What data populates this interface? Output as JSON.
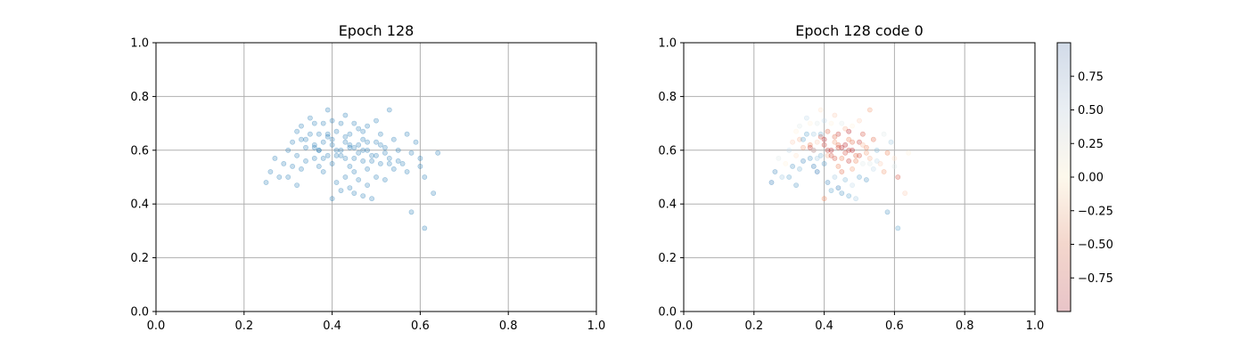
{
  "chart_data": [
    {
      "type": "scatter",
      "title": "Epoch 128",
      "xlim": [
        0,
        1
      ],
      "ylim": [
        0,
        1
      ],
      "xticks": [
        "0.0",
        "0.2",
        "0.4",
        "0.6",
        "0.8",
        "1.0"
      ],
      "yticks": [
        "0.0",
        "0.2",
        "0.4",
        "0.6",
        "0.8",
        "1.0"
      ],
      "grid": true,
      "marker_color": "#1f77b4",
      "alpha": 0.25,
      "series": [
        {
          "x": [
            0.25,
            0.26,
            0.27,
            0.28,
            0.29,
            0.3,
            0.3,
            0.31,
            0.31,
            0.32,
            0.32,
            0.33,
            0.33,
            0.33,
            0.34,
            0.34,
            0.35,
            0.35,
            0.36,
            0.36,
            0.36,
            0.37,
            0.37,
            0.37,
            0.38,
            0.38,
            0.38,
            0.39,
            0.39,
            0.39,
            0.4,
            0.4,
            0.4,
            0.4,
            0.41,
            0.41,
            0.41,
            0.42,
            0.42,
            0.42,
            0.43,
            0.43,
            0.43,
            0.43,
            0.44,
            0.44,
            0.44,
            0.45,
            0.45,
            0.45,
            0.45,
            0.46,
            0.46,
            0.46,
            0.47,
            0.47,
            0.47,
            0.48,
            0.48,
            0.48,
            0.48,
            0.49,
            0.49,
            0.5,
            0.5,
            0.5,
            0.51,
            0.51,
            0.52,
            0.52,
            0.53,
            0.53,
            0.54,
            0.54,
            0.55,
            0.56,
            0.57,
            0.58,
            0.59,
            0.6,
            0.61,
            0.63,
            0.64,
            0.58,
            0.61,
            0.36,
            0.4,
            0.42,
            0.44,
            0.47,
            0.49,
            0.52,
            0.38,
            0.43,
            0.46,
            0.5,
            0.55,
            0.41,
            0.45,
            0.48,
            0.53,
            0.39,
            0.44,
            0.47,
            0.51,
            0.34,
            0.37,
            0.57,
            0.6,
            0.32
          ],
          "y": [
            0.48,
            0.52,
            0.57,
            0.5,
            0.55,
            0.6,
            0.5,
            0.63,
            0.54,
            0.58,
            0.67,
            0.53,
            0.64,
            0.69,
            0.56,
            0.61,
            0.72,
            0.66,
            0.57,
            0.62,
            0.7,
            0.54,
            0.6,
            0.66,
            0.52,
            0.63,
            0.7,
            0.58,
            0.65,
            0.75,
            0.42,
            0.55,
            0.62,
            0.71,
            0.48,
            0.58,
            0.67,
            0.45,
            0.6,
            0.7,
            0.5,
            0.57,
            0.63,
            0.73,
            0.46,
            0.54,
            0.66,
            0.44,
            0.52,
            0.61,
            0.7,
            0.49,
            0.59,
            0.68,
            0.43,
            0.56,
            0.64,
            0.47,
            0.53,
            0.6,
            0.69,
            0.42,
            0.58,
            0.5,
            0.63,
            0.71,
            0.55,
            0.66,
            0.49,
            0.61,
            0.57,
            0.75,
            0.53,
            0.64,
            0.6,
            0.55,
            0.66,
            0.59,
            0.63,
            0.57,
            0.5,
            0.44,
            0.59,
            0.37,
            0.31,
            0.61,
            0.64,
            0.58,
            0.62,
            0.6,
            0.56,
            0.59,
            0.57,
            0.65,
            0.62,
            0.58,
            0.56,
            0.6,
            0.57,
            0.63,
            0.55,
            0.66,
            0.61,
            0.67,
            0.62,
            0.64,
            0.6,
            0.52,
            0.54,
            0.47
          ]
        }
      ]
    },
    {
      "type": "scatter",
      "title": "Epoch 128 code 0",
      "xlim": [
        0,
        1
      ],
      "ylim": [
        0,
        1
      ],
      "xticks": [
        "0.0",
        "0.2",
        "0.4",
        "0.6",
        "0.8",
        "1.0"
      ],
      "yticks": [
        "0.0",
        "0.2",
        "0.4",
        "0.6",
        "0.8",
        "1.0"
      ],
      "grid": true,
      "alpha": 0.3,
      "colorbar": {
        "colormap": "RdBu",
        "range": [
          -1,
          1
        ],
        "ticks": [
          "0.75",
          "0.50",
          "0.25",
          "0.00",
          "−0.25",
          "−0.50",
          "−0.75"
        ],
        "tick_values": [
          0.75,
          0.5,
          0.25,
          0.0,
          -0.25,
          -0.5,
          -0.75
        ],
        "colors": [
          "#b2182b",
          "#ef8a62",
          "#fddbc7",
          "#fff7e6",
          "#d1e5f0",
          "#67a9cf",
          "#2166ac"
        ]
      },
      "series": [
        {
          "x": [
            0.25,
            0.26,
            0.27,
            0.28,
            0.29,
            0.3,
            0.3,
            0.31,
            0.31,
            0.32,
            0.32,
            0.33,
            0.33,
            0.33,
            0.34,
            0.34,
            0.35,
            0.35,
            0.36,
            0.36,
            0.36,
            0.37,
            0.37,
            0.37,
            0.38,
            0.38,
            0.38,
            0.39,
            0.39,
            0.39,
            0.4,
            0.4,
            0.4,
            0.4,
            0.41,
            0.41,
            0.41,
            0.42,
            0.42,
            0.42,
            0.43,
            0.43,
            0.43,
            0.43,
            0.44,
            0.44,
            0.44,
            0.45,
            0.45,
            0.45,
            0.45,
            0.46,
            0.46,
            0.46,
            0.47,
            0.47,
            0.47,
            0.48,
            0.48,
            0.48,
            0.48,
            0.49,
            0.49,
            0.5,
            0.5,
            0.5,
            0.51,
            0.51,
            0.52,
            0.52,
            0.53,
            0.53,
            0.54,
            0.54,
            0.55,
            0.56,
            0.57,
            0.58,
            0.59,
            0.6,
            0.61,
            0.63,
            0.64,
            0.58,
            0.61,
            0.36,
            0.4,
            0.42,
            0.44,
            0.47,
            0.49,
            0.52,
            0.38,
            0.43,
            0.46,
            0.5,
            0.55,
            0.41,
            0.45,
            0.48,
            0.53,
            0.39,
            0.44,
            0.47,
            0.51,
            0.34,
            0.37,
            0.57,
            0.6,
            0.32
          ],
          "y": [
            0.48,
            0.52,
            0.57,
            0.5,
            0.55,
            0.6,
            0.5,
            0.63,
            0.54,
            0.58,
            0.67,
            0.53,
            0.64,
            0.69,
            0.56,
            0.61,
            0.72,
            0.66,
            0.57,
            0.62,
            0.7,
            0.54,
            0.6,
            0.66,
            0.52,
            0.63,
            0.7,
            0.58,
            0.65,
            0.75,
            0.42,
            0.55,
            0.62,
            0.71,
            0.48,
            0.58,
            0.67,
            0.45,
            0.6,
            0.7,
            0.5,
            0.57,
            0.63,
            0.73,
            0.46,
            0.54,
            0.66,
            0.44,
            0.52,
            0.61,
            0.7,
            0.49,
            0.59,
            0.68,
            0.43,
            0.56,
            0.64,
            0.47,
            0.53,
            0.6,
            0.69,
            0.42,
            0.58,
            0.5,
            0.63,
            0.71,
            0.55,
            0.66,
            0.49,
            0.61,
            0.57,
            0.75,
            0.53,
            0.64,
            0.6,
            0.55,
            0.66,
            0.59,
            0.63,
            0.57,
            0.5,
            0.44,
            0.59,
            0.37,
            0.31,
            0.61,
            0.64,
            0.58,
            0.62,
            0.6,
            0.56,
            0.59,
            0.57,
            0.65,
            0.62,
            0.58,
            0.56,
            0.6,
            0.57,
            0.63,
            0.55,
            0.66,
            0.61,
            0.67,
            0.62,
            0.64,
            0.6,
            0.52,
            0.54,
            0.47
          ],
          "c": [
            0.8,
            0.7,
            0.1,
            0.3,
            0.0,
            0.2,
            0.5,
            -0.2,
            0.6,
            -0.1,
            0.0,
            0.4,
            -0.3,
            0.1,
            0.7,
            -0.4,
            0.2,
            0.5,
            0.6,
            -0.5,
            0.0,
            0.8,
            -0.6,
            0.3,
            0.9,
            -0.2,
            0.1,
            0.4,
            -0.7,
            -0.1,
            -0.5,
            0.6,
            -0.8,
            0.2,
            0.7,
            -0.3,
            -0.6,
            0.5,
            -0.9,
            0.0,
            0.3,
            -0.7,
            -0.4,
            -0.2,
            0.8,
            -0.5,
            -0.8,
            0.6,
            -0.6,
            -0.9,
            0.1,
            0.4,
            -0.7,
            -0.3,
            0.5,
            -0.8,
            -0.5,
            0.2,
            -0.4,
            -0.9,
            0.0,
            0.3,
            -0.6,
            0.5,
            -0.8,
            -0.2,
            0.1,
            -0.7,
            0.6,
            -0.5,
            -0.3,
            -0.4,
            0.2,
            -0.6,
            0.4,
            -0.2,
            0.1,
            -0.5,
            0.3,
            -0.1,
            -0.7,
            -0.2,
            0.0,
            0.6,
            0.5,
            -0.8,
            -0.9,
            -0.7,
            -0.6,
            -0.8,
            -0.5,
            -0.4,
            0.3,
            -0.6,
            -0.9,
            -0.7,
            0.2,
            -0.8,
            -0.5,
            -0.6,
            0.1,
            0.4,
            -0.7,
            -0.9,
            -0.3,
            0.5,
            0.2,
            -0.4,
            0.1,
            0.6
          ]
        }
      ]
    }
  ]
}
